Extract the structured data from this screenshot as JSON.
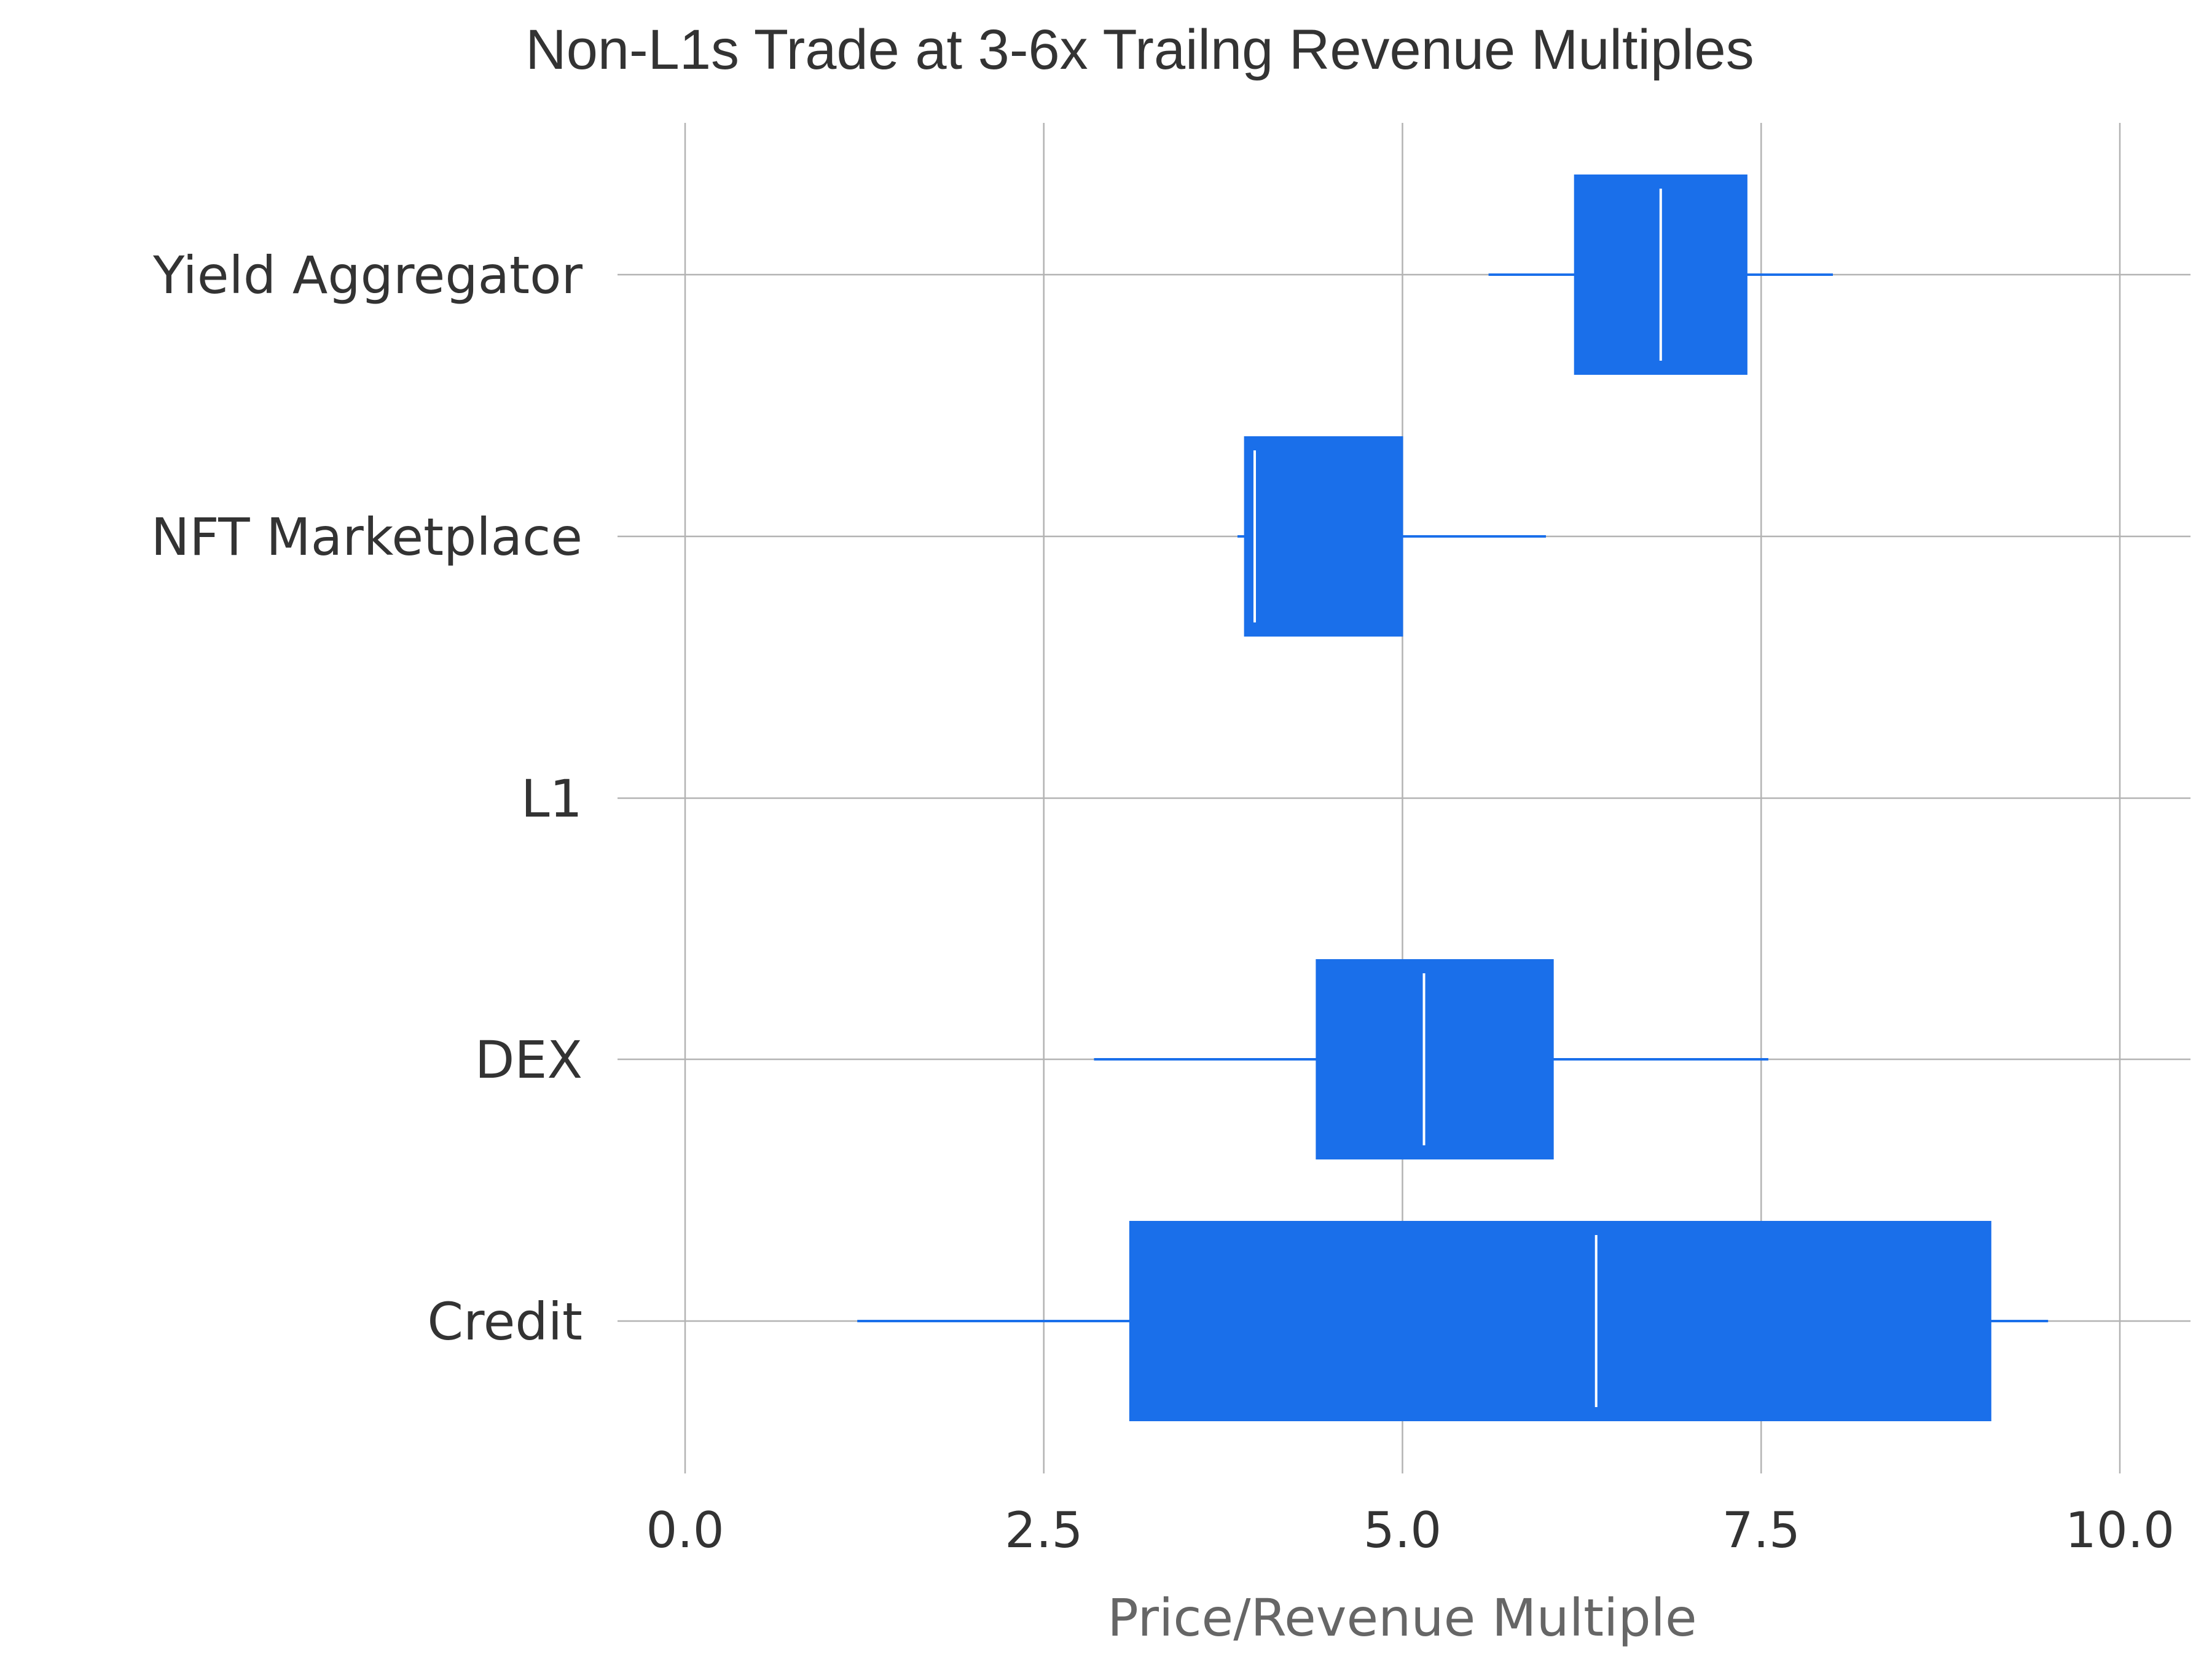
{
  "chart_data": {
    "type": "box",
    "orientation": "horizontal",
    "title": "Non-L1s Trade at 3-6x Trailng Revenue Multiples",
    "xlabel": "Price/Revenue Multiple",
    "ylabel": "",
    "xlim": [
      -0.45,
      10.45
    ],
    "xticks": [
      0,
      2.5,
      5,
      7.5,
      10
    ],
    "xtick_labels": [
      "0.0",
      "2.5",
      "5.0",
      "7.5",
      "10.0"
    ],
    "grid": true,
    "categories": [
      "Yield Aggregator",
      "NFT Marketplace",
      "L1",
      "DEX",
      "Credit"
    ],
    "boxes": [
      {
        "category": "Yield Aggregator",
        "whisker_low": 5.6,
        "q1": 6.2,
        "median": 6.8,
        "q3": 7.4,
        "whisker_high": 8.0
      },
      {
        "category": "NFT Marketplace",
        "whisker_low": 3.85,
        "q1": 3.9,
        "median": 3.97,
        "q3": 5.0,
        "whisker_high": 6.0
      },
      {
        "category": "L1"
      },
      {
        "category": "DEX",
        "whisker_low": 2.85,
        "q1": 4.4,
        "median": 5.15,
        "q3": 6.05,
        "whisker_high": 7.55
      },
      {
        "category": "Credit",
        "whisker_low": 1.2,
        "q1": 3.1,
        "median": 6.35,
        "q3": 9.1,
        "whisker_high": 9.5
      }
    ],
    "colors": {
      "box": "#1a6fea",
      "whisker": "#1a6fea",
      "median": "#ffffff",
      "grid": "#b3b3b3"
    }
  }
}
